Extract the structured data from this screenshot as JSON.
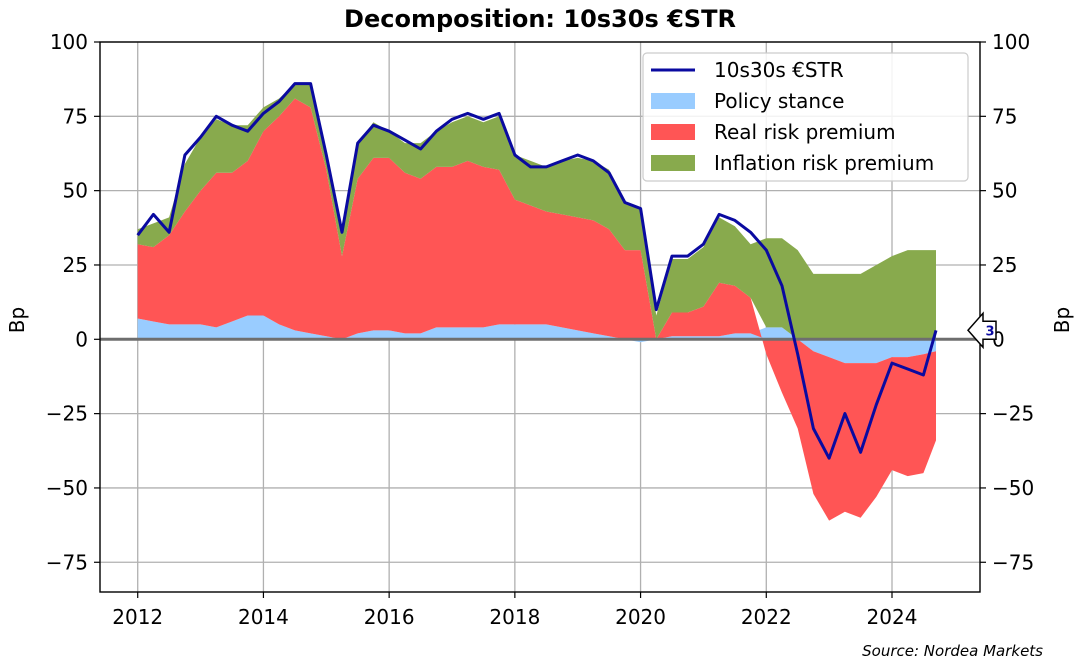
{
  "chart_data": {
    "type": "area",
    "title": "Decomposition: 10s30s €STR",
    "xlabel": "",
    "ylabel_left": "Bp",
    "ylabel_right": "Bp",
    "xlim": [
      2011.4,
      2025.4
    ],
    "ylim": [
      -85,
      100
    ],
    "x_ticks": [
      2012,
      2014,
      2016,
      2018,
      2020,
      2022,
      2024
    ],
    "y_ticks": [
      100,
      75,
      50,
      25,
      0,
      -25,
      -50,
      -75
    ],
    "grid": true,
    "legend_position": "top-right",
    "x": [
      2012.0,
      2012.25,
      2012.5,
      2012.75,
      2013.0,
      2013.25,
      2013.5,
      2013.75,
      2014.0,
      2014.25,
      2014.5,
      2014.75,
      2015.0,
      2015.25,
      2015.5,
      2015.75,
      2016.0,
      2016.25,
      2016.5,
      2016.75,
      2017.0,
      2017.25,
      2017.5,
      2017.75,
      2018.0,
      2018.25,
      2018.5,
      2018.75,
      2019.0,
      2019.25,
      2019.5,
      2019.75,
      2020.0,
      2020.25,
      2020.5,
      2020.75,
      2021.0,
      2021.25,
      2021.5,
      2021.75,
      2022.0,
      2022.25,
      2022.5,
      2022.75,
      2023.0,
      2023.25,
      2023.5,
      2023.75,
      2024.0,
      2024.25,
      2024.5,
      2024.7
    ],
    "series": [
      {
        "name": "10s30s €STR",
        "kind": "line",
        "color": "#0a0aa0",
        "values": [
          35,
          42,
          36,
          62,
          68,
          75,
          72,
          70,
          76,
          80,
          86,
          86,
          62,
          36,
          66,
          72,
          70,
          67,
          64,
          70,
          74,
          76,
          74,
          76,
          62,
          58,
          58,
          60,
          62,
          60,
          56,
          46,
          44,
          10,
          28,
          28,
          32,
          42,
          40,
          36,
          30,
          18,
          -5,
          -30,
          -40,
          -25,
          -38,
          -22,
          -8,
          -10,
          -12,
          3
        ]
      },
      {
        "name": "Policy stance",
        "kind": "area",
        "color": "#99ccff",
        "values": [
          7,
          6,
          5,
          5,
          5,
          4,
          6,
          8,
          8,
          5,
          3,
          2,
          1,
          0,
          2,
          3,
          3,
          2,
          2,
          4,
          4,
          4,
          4,
          5,
          5,
          5,
          5,
          4,
          3,
          2,
          1,
          0,
          -1,
          0,
          1,
          1,
          1,
          1,
          2,
          2,
          4,
          4,
          0,
          -4,
          -6,
          -8,
          -8,
          -8,
          -6,
          -6,
          -5,
          -4
        ]
      },
      {
        "name": "Real risk premium",
        "kind": "area",
        "color": "#ff5555",
        "values": [
          25,
          25,
          30,
          38,
          45,
          52,
          50,
          52,
          62,
          70,
          78,
          76,
          56,
          28,
          52,
          58,
          58,
          54,
          52,
          54,
          54,
          56,
          54,
          52,
          42,
          40,
          38,
          38,
          38,
          38,
          36,
          30,
          30,
          0,
          8,
          8,
          10,
          18,
          16,
          12,
          -5,
          -18,
          -30,
          -48,
          -55,
          -50,
          -52,
          -45,
          -38,
          -40,
          -40,
          -30
        ]
      },
      {
        "name": "Inflation risk premium",
        "kind": "area",
        "color": "#88aa4d",
        "values": [
          5,
          8,
          6,
          16,
          18,
          18,
          16,
          12,
          8,
          6,
          5,
          8,
          5,
          8,
          12,
          12,
          9,
          10,
          12,
          12,
          15,
          15,
          15,
          18,
          15,
          15,
          15,
          18,
          20,
          20,
          20,
          16,
          14,
          8,
          18,
          18,
          20,
          22,
          20,
          18,
          30,
          30,
          30,
          22,
          22,
          22,
          22,
          25,
          28,
          30,
          30,
          30
        ]
      }
    ]
  },
  "annotation": {
    "marker_value": "3",
    "marker_color": "#0a0aa0"
  },
  "source": "Source: Nordea Markets"
}
